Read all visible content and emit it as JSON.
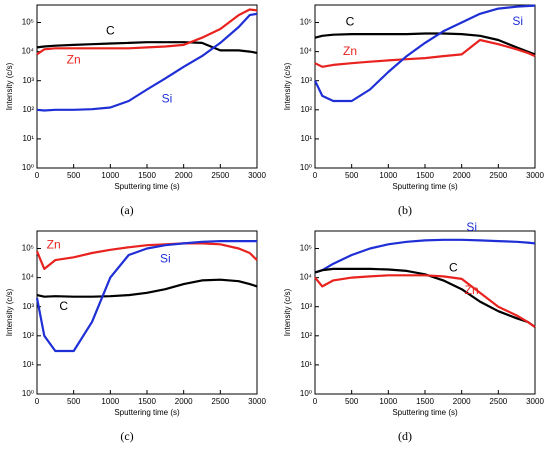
{
  "chart_data": [
    {
      "type": "line",
      "caption": "(a)",
      "xlabel": "Sputtering time (s)",
      "ylabel": "Intensity (c/s)",
      "ylog": true,
      "x": [
        0,
        100,
        250,
        500,
        750,
        1000,
        1250,
        1500,
        1750,
        2000,
        2250,
        2500,
        2750,
        2900,
        3000
      ],
      "xlim": [
        0,
        3000
      ],
      "xticks": [
        0,
        500,
        1000,
        1500,
        2000,
        2500,
        3000
      ],
      "ylim": [
        1,
        400000
      ],
      "yticks": [
        {
          "value": 1,
          "label": "10⁰"
        },
        {
          "value": 10,
          "label": "10¹"
        },
        {
          "value": 100,
          "label": "10²"
        },
        {
          "value": 1000,
          "label": "10³"
        },
        {
          "value": 10000,
          "label": "10⁴"
        },
        {
          "value": 100000,
          "label": "10⁵"
        }
      ],
      "series": [
        {
          "name": "C",
          "color": "#000000",
          "values": [
            14000,
            15000,
            16000,
            17000,
            18000,
            19000,
            20000,
            21000,
            21000,
            21000,
            20000,
            11000,
            11000,
            10000,
            9000
          ]
        },
        {
          "name": "Zn",
          "color": "#e8231f",
          "values": [
            8000,
            12000,
            13000,
            13000,
            13000,
            13000,
            13000,
            14000,
            15000,
            17000,
            30000,
            60000,
            180000,
            280000,
            260000
          ]
        },
        {
          "name": "Si",
          "color": "#1f2fd6",
          "values": [
            100,
            95,
            100,
            100,
            105,
            120,
            200,
            500,
            1200,
            3000,
            7000,
            20000,
            70000,
            180000,
            200000
          ]
        }
      ]
    },
    {
      "type": "line",
      "caption": "(b)",
      "xlabel": "Sputtering time (s)",
      "ylabel": "Intensity (c/s)",
      "ylog": true,
      "x": [
        0,
        100,
        250,
        500,
        750,
        1000,
        1250,
        1500,
        1750,
        2000,
        2250,
        2500,
        2750,
        2900,
        3000
      ],
      "xlim": [
        0,
        3000
      ],
      "xticks": [
        0,
        500,
        1000,
        1500,
        2000,
        2500,
        3000
      ],
      "ylim": [
        1,
        400000
      ],
      "yticks": [
        {
          "value": 1,
          "label": "10⁰"
        },
        {
          "value": 10,
          "label": "10¹"
        },
        {
          "value": 100,
          "label": "10²"
        },
        {
          "value": 1000,
          "label": "10³"
        },
        {
          "value": 10000,
          "label": "10⁴"
        },
        {
          "value": 100000,
          "label": "10⁵"
        }
      ],
      "series": [
        {
          "name": "C",
          "color": "#000000",
          "values": [
            30000,
            35000,
            38000,
            40000,
            40000,
            40000,
            40000,
            42000,
            42000,
            40000,
            35000,
            25000,
            14000,
            10000,
            8000
          ]
        },
        {
          "name": "Zn",
          "color": "#e8231f",
          "values": [
            4000,
            3000,
            3500,
            4000,
            4500,
            5000,
            5500,
            6000,
            7000,
            8000,
            25000,
            18000,
            12000,
            9000,
            7000
          ]
        },
        {
          "name": "Si",
          "color": "#1f2fd6",
          "values": [
            1000,
            300,
            200,
            200,
            500,
            2000,
            7000,
            20000,
            50000,
            100000,
            200000,
            300000,
            350000,
            370000,
            380000
          ]
        }
      ]
    },
    {
      "type": "line",
      "caption": "(c)",
      "xlabel": "Sputtering time (s)",
      "ylabel": "Intensity (c/s)",
      "ylog": true,
      "x": [
        0,
        100,
        250,
        500,
        750,
        1000,
        1250,
        1500,
        1750,
        2000,
        2250,
        2500,
        2750,
        2900,
        3000
      ],
      "xlim": [
        0,
        3000
      ],
      "xticks": [
        0,
        500,
        1000,
        1500,
        2000,
        2500,
        3000
      ],
      "ylim": [
        1,
        400000
      ],
      "yticks": [
        {
          "value": 1,
          "label": "10⁰"
        },
        {
          "value": 10,
          "label": "10¹"
        },
        {
          "value": 100,
          "label": "10²"
        },
        {
          "value": 1000,
          "label": "10³"
        },
        {
          "value": 10000,
          "label": "10⁴"
        },
        {
          "value": 100000,
          "label": "10⁵"
        }
      ],
      "series": [
        {
          "name": "Zn",
          "color": "#e8231f",
          "values": [
            80000,
            20000,
            40000,
            50000,
            70000,
            90000,
            110000,
            130000,
            140000,
            150000,
            150000,
            140000,
            100000,
            70000,
            40000
          ]
        },
        {
          "name": "C",
          "color": "#000000",
          "values": [
            2500,
            2200,
            2300,
            2200,
            2200,
            2300,
            2500,
            3000,
            4000,
            6000,
            8000,
            8500,
            7500,
            6000,
            5000
          ]
        },
        {
          "name": "Si",
          "color": "#1f2fd6",
          "values": [
            2000,
            100,
            30,
            30,
            300,
            10000,
            60000,
            100000,
            130000,
            150000,
            170000,
            180000,
            180000,
            180000,
            180000
          ]
        }
      ]
    },
    {
      "type": "line",
      "caption": "(d)",
      "xlabel": "Sputtering time (s)",
      "ylabel": "Intensity (c/s)",
      "ylog": true,
      "x": [
        0,
        100,
        250,
        500,
        750,
        1000,
        1250,
        1500,
        1750,
        2000,
        2250,
        2500,
        2750,
        2900,
        3000
      ],
      "xlim": [
        0,
        3000
      ],
      "xticks": [
        0,
        500,
        1000,
        1500,
        2000,
        2500,
        3000
      ],
      "ylim": [
        1,
        400000
      ],
      "yticks": [
        {
          "value": 1,
          "label": "10⁰"
        },
        {
          "value": 10,
          "label": "10¹"
        },
        {
          "value": 100,
          "label": "10²"
        },
        {
          "value": 1000,
          "label": "10³"
        },
        {
          "value": 10000,
          "label": "10⁴"
        },
        {
          "value": 100000,
          "label": "10⁵"
        }
      ],
      "series": [
        {
          "name": "Si",
          "color": "#1f2fd6",
          "values": [
            15000,
            18000,
            30000,
            60000,
            100000,
            140000,
            170000,
            190000,
            200000,
            200000,
            190000,
            180000,
            170000,
            160000,
            150000
          ]
        },
        {
          "name": "C",
          "color": "#000000",
          "values": [
            15000,
            18000,
            20000,
            20000,
            20000,
            19000,
            17000,
            13000,
            8000,
            4000,
            1500,
            700,
            400,
            300,
            200
          ]
        },
        {
          "name": "Zn",
          "color": "#e8231f",
          "values": [
            10000,
            5000,
            8000,
            10000,
            11000,
            12000,
            12000,
            12000,
            11000,
            9000,
            3000,
            1000,
            500,
            300,
            200
          ]
        }
      ]
    }
  ]
}
